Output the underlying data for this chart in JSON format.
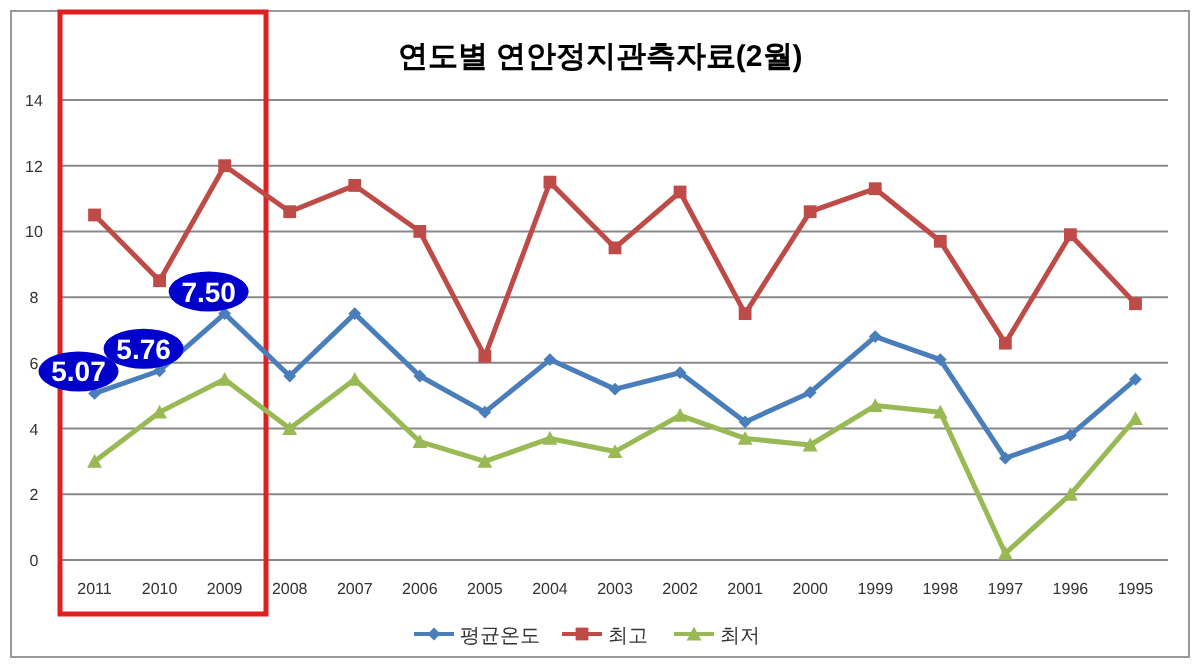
{
  "chart_data": {
    "type": "line",
    "title": "연도별 연안정지관측자료(2월)",
    "categories": [
      "2011",
      "2010",
      "2009",
      "2008",
      "2007",
      "2006",
      "2005",
      "2004",
      "2003",
      "2002",
      "2001",
      "2000",
      "1999",
      "1998",
      "1997",
      "1996",
      "1995"
    ],
    "series": [
      {
        "name": "평균온도",
        "color": "#4a7ebb",
        "marker": "diamond",
        "values": [
          5.07,
          5.76,
          7.5,
          5.6,
          7.5,
          5.6,
          4.5,
          6.1,
          5.2,
          5.7,
          4.2,
          5.1,
          6.8,
          6.1,
          3.1,
          3.8,
          5.5
        ],
        "value_labels": [
          "5.07",
          "5.76",
          "7.50",
          null,
          null,
          null,
          null,
          null,
          null,
          null,
          null,
          null,
          null,
          null,
          null,
          null,
          null
        ]
      },
      {
        "name": "최고",
        "color": "#be4b48",
        "marker": "square",
        "values": [
          10.5,
          8.5,
          12.0,
          10.6,
          11.4,
          10.0,
          6.2,
          11.5,
          9.5,
          11.2,
          7.5,
          10.6,
          11.3,
          9.7,
          6.6,
          9.9,
          7.8
        ]
      },
      {
        "name": "최저",
        "color": "#98b954",
        "marker": "triangle",
        "values": [
          3.0,
          4.5,
          5.5,
          4.0,
          5.5,
          3.6,
          3.0,
          3.7,
          3.3,
          4.4,
          3.7,
          3.5,
          4.7,
          4.5,
          0.2,
          2.0,
          4.3
        ]
      }
    ],
    "ylim": [
      0,
      14
    ],
    "yticks": [
      0,
      2,
      4,
      6,
      8,
      10,
      12,
      14
    ],
    "grid": "y",
    "legend": "bottom"
  }
}
